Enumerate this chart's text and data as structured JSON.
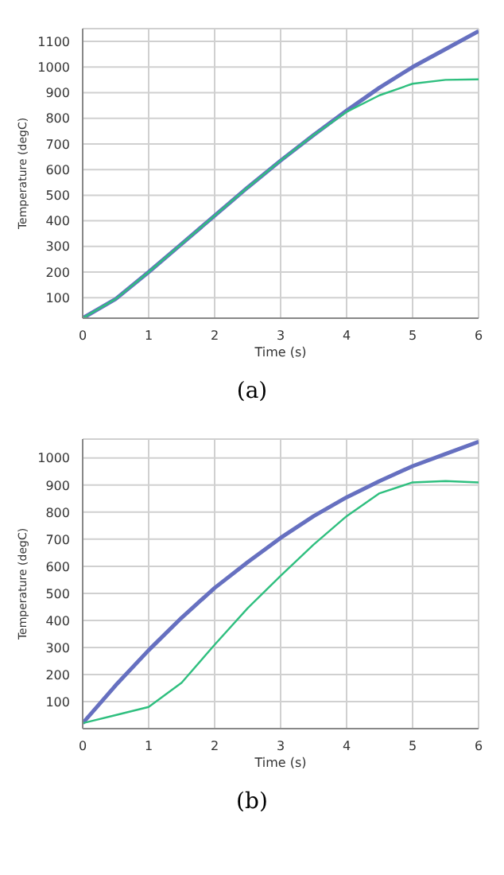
{
  "chart_data": [
    {
      "type": "line",
      "xlabel": "Time (s)",
      "ylabel": "Temperature (degC)",
      "annotations": [
        "(a)"
      ],
      "x": [
        0,
        0.5,
        1,
        1.5,
        2,
        2.5,
        3,
        3.5,
        4,
        4.5,
        5,
        5.5,
        6
      ],
      "series": [
        {
          "color": "#6670c0",
          "values": [
            20,
            95,
            200,
            310,
            420,
            530,
            635,
            735,
            830,
            920,
            1000,
            1070,
            1140
          ]
        },
        {
          "color": "#2fbf7f",
          "values": [
            20,
            95,
            200,
            310,
            420,
            530,
            635,
            735,
            825,
            890,
            935,
            950,
            952
          ]
        }
      ],
      "xlim": [
        0,
        6
      ],
      "xticks": [
        0,
        1,
        2,
        3,
        4,
        5,
        6
      ],
      "ylim": [
        20,
        1150
      ],
      "yticks": [
        100,
        200,
        300,
        400,
        500,
        600,
        700,
        800,
        900,
        1000,
        1100
      ],
      "grid": true,
      "marker": "none",
      "line_style": "solid"
    },
    {
      "type": "line",
      "xlabel": "Time (s)",
      "ylabel": "Temperature (degC)",
      "annotations": [
        "(b)"
      ],
      "x": [
        0,
        0.5,
        1,
        1.5,
        2,
        2.5,
        3,
        3.5,
        4,
        4.5,
        5,
        5.5,
        6
      ],
      "series": [
        {
          "color": "#6670c0",
          "values": [
            20,
            160,
            290,
            410,
            520,
            615,
            705,
            785,
            855,
            915,
            970,
            1015,
            1060
          ]
        },
        {
          "color": "#2fbf7f",
          "values": [
            20,
            50,
            80,
            170,
            310,
            445,
            565,
            680,
            785,
            870,
            910,
            915,
            910
          ]
        }
      ],
      "xlim": [
        0,
        6
      ],
      "xticks": [
        0,
        1,
        2,
        3,
        4,
        5,
        6
      ],
      "ylim": [
        0,
        1070
      ],
      "yticks": [
        100,
        200,
        300,
        400,
        500,
        600,
        700,
        800,
        900,
        1000
      ],
      "grid": true,
      "marker": "none",
      "line_style": "solid"
    }
  ]
}
